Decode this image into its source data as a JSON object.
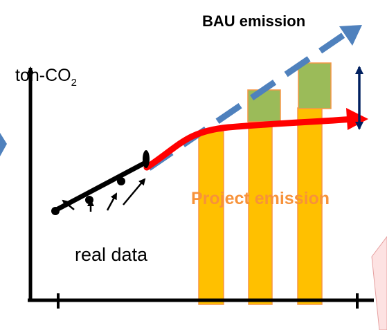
{
  "labels": {
    "y_axis": "ton-CO",
    "y_axis_subscript": "2",
    "bau": "BAU emission",
    "project": "Project emission",
    "real_data": "real data"
  },
  "colors": {
    "bau_line": "#4f81bd",
    "project_line": "#ff0000",
    "project_label": "#f7923a",
    "bar_fill": "#ffc000",
    "bar_border": "#f79646",
    "reduction_fill": "#9bbb59",
    "double_arrow": "#002060",
    "real_data_line": "#000000",
    "callout_fill": "#fde2e2"
  },
  "bars": [
    {
      "name": "bar-1",
      "total_level": 0.8,
      "reduction_level": 0.0
    },
    {
      "name": "bar-2",
      "total_level": 0.77,
      "reduction_level": 0.14
    },
    {
      "name": "bar-3",
      "total_level": 0.78,
      "reduction_level": 0.22
    }
  ]
}
